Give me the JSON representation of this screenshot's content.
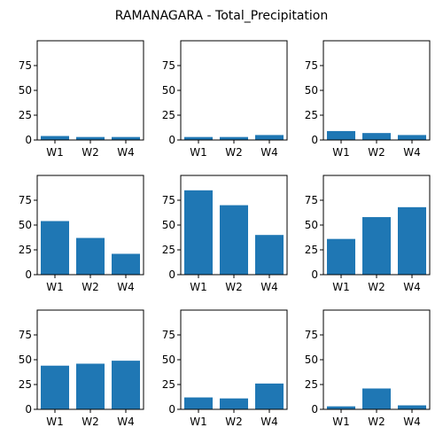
{
  "figure": {
    "title": "RAMANAGARA - Total_Precipitation",
    "bar_color": "#1f77b4"
  },
  "chart_data": [
    {
      "type": "bar",
      "categories": [
        "W1",
        "W2",
        "W4"
      ],
      "values": [
        4,
        3,
        3
      ],
      "ylim": [
        0,
        100
      ],
      "yticks": [
        0,
        25,
        50,
        75
      ],
      "xlabel": "",
      "ylabel": ""
    },
    {
      "type": "bar",
      "categories": [
        "W1",
        "W2",
        "W4"
      ],
      "values": [
        3,
        3,
        5
      ],
      "ylim": [
        0,
        100
      ],
      "yticks": [
        0,
        25,
        50,
        75
      ],
      "xlabel": "",
      "ylabel": ""
    },
    {
      "type": "bar",
      "categories": [
        "W1",
        "W2",
        "W4"
      ],
      "values": [
        9,
        7,
        5
      ],
      "ylim": [
        0,
        100
      ],
      "yticks": [
        0,
        25,
        50,
        75
      ],
      "xlabel": "",
      "ylabel": ""
    },
    {
      "type": "bar",
      "categories": [
        "W1",
        "W2",
        "W4"
      ],
      "values": [
        54,
        37,
        21
      ],
      "ylim": [
        0,
        100
      ],
      "yticks": [
        0,
        25,
        50,
        75
      ],
      "xlabel": "",
      "ylabel": ""
    },
    {
      "type": "bar",
      "categories": [
        "W1",
        "W2",
        "W4"
      ],
      "values": [
        85,
        70,
        40
      ],
      "ylim": [
        0,
        100
      ],
      "yticks": [
        0,
        25,
        50,
        75
      ],
      "xlabel": "",
      "ylabel": ""
    },
    {
      "type": "bar",
      "categories": [
        "W1",
        "W2",
        "W4"
      ],
      "values": [
        36,
        58,
        68
      ],
      "ylim": [
        0,
        100
      ],
      "yticks": [
        0,
        25,
        50,
        75
      ],
      "xlabel": "",
      "ylabel": ""
    },
    {
      "type": "bar",
      "categories": [
        "W1",
        "W2",
        "W4"
      ],
      "values": [
        44,
        46,
        49
      ],
      "ylim": [
        0,
        100
      ],
      "yticks": [
        0,
        25,
        50,
        75
      ],
      "xlabel": "",
      "ylabel": ""
    },
    {
      "type": "bar",
      "categories": [
        "W1",
        "W2",
        "W4"
      ],
      "values": [
        12,
        11,
        26
      ],
      "ylim": [
        0,
        100
      ],
      "yticks": [
        0,
        25,
        50,
        75
      ],
      "xlabel": "",
      "ylabel": ""
    },
    {
      "type": "bar",
      "categories": [
        "W1",
        "W2",
        "W4"
      ],
      "values": [
        3,
        21,
        4
      ],
      "ylim": [
        0,
        100
      ],
      "yticks": [
        0,
        25,
        50,
        75
      ],
      "xlabel": "",
      "ylabel": ""
    }
  ]
}
